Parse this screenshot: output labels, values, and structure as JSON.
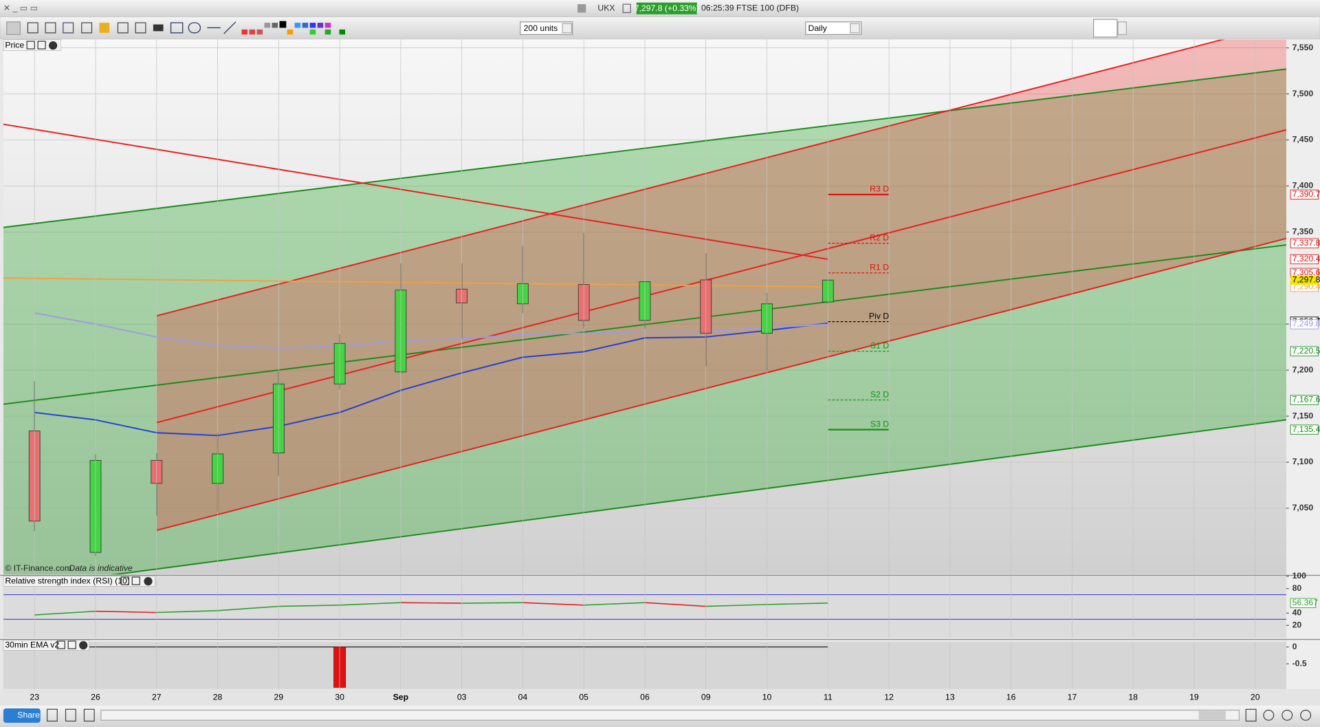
{
  "window": {
    "symbol": "UKX",
    "price": "7,297.8 (+0.33%)",
    "status": "06:25:39 FTSE 100 (DFB)"
  },
  "toolbar": {
    "units": "200 units",
    "interval": "Daily"
  },
  "footer": {
    "share": "Share"
  },
  "chart_data": [
    {
      "type": "candlestick",
      "title": "Price",
      "credit": "© IT-Finance.com",
      "note": "Data is indicative",
      "categories": [
        "23",
        "26",
        "27",
        "28",
        "29",
        "30",
        "Sep",
        "03",
        "04",
        "05",
        "06",
        "09",
        "10",
        "11",
        "12",
        "13",
        "16",
        "17",
        "18",
        "19",
        "20"
      ],
      "open": [
        7134,
        7002,
        7102,
        7077,
        7110,
        7185,
        7198,
        7288,
        7272,
        7293,
        7254,
        7298,
        7240,
        7274,
        null,
        null,
        null,
        null,
        null,
        null,
        null
      ],
      "high": [
        7188,
        7109,
        7110,
        7132,
        7199,
        7239,
        7316,
        7316,
        7335,
        7349,
        7296,
        7327,
        7284,
        7298,
        null,
        null,
        null,
        null,
        null,
        null,
        null
      ],
      "low": [
        7025,
        6998,
        7042,
        7046,
        7085,
        7179,
        7198,
        7234,
        7262,
        7245,
        7245,
        7204,
        7199,
        7272,
        null,
        null,
        null,
        null,
        null,
        null,
        null
      ],
      "close": [
        7036,
        7102,
        7077,
        7109,
        7185,
        7229,
        7287,
        7273,
        7294,
        7254,
        7296,
        7240,
        7272,
        7297.8,
        null,
        null,
        null,
        null,
        null,
        null,
        null
      ],
      "colors": {
        "up": "#44d444",
        "down": "#e87070"
      },
      "ylim": [
        6978,
        7559
      ],
      "yticks": [
        {
          "value": 7050,
          "label": "7,050"
        },
        {
          "value": 7100,
          "label": "7,100"
        },
        {
          "value": 7150,
          "label": "7,150"
        },
        {
          "value": 7200,
          "label": "7,200"
        },
        {
          "value": 7250,
          "label": "7,250"
        },
        {
          "value": 7350,
          "label": "7,350"
        },
        {
          "value": 7400,
          "label": "7,400"
        },
        {
          "value": 7450,
          "label": "7,450"
        },
        {
          "value": 7500,
          "label": "7,500"
        },
        {
          "value": 7550,
          "label": "7,550"
        }
      ],
      "moving_averages": [
        {
          "color": "#1f3fd8",
          "values": [
            7154,
            7146,
            7132,
            7129,
            7139,
            7154,
            7178,
            7197,
            7214,
            7220,
            7235,
            7236,
            7243,
            7251,
            null,
            null,
            null,
            null,
            null,
            null,
            null
          ]
        },
        {
          "color": "#9c9ce0",
          "values": [
            7262,
            7250,
            7236,
            7227,
            7224,
            7226,
            7232,
            7234,
            7239,
            7240,
            7242,
            7242,
            7246,
            7249.8,
            null,
            null,
            null,
            null,
            null,
            null,
            null
          ]
        }
      ],
      "channels": [
        {
          "color": "#1a8a1a",
          "fill": "rgba(40,170,40,0.33)",
          "upper": {
            "x": [
              -0.51,
              20.51
            ],
            "y": [
              7355,
              7527
            ]
          },
          "middle": {
            "x": [
              -0.51,
              20.51
            ],
            "y": [
              7163,
              7336
            ]
          },
          "lower": {
            "x": [
              -0.51,
              20.51
            ],
            "y": [
              6962,
              7146
            ]
          }
        },
        {
          "color": "#e81e1e",
          "fill": "rgba(235,60,60,0.33)",
          "upper": {
            "x": [
              2,
              20.51
            ],
            "y": [
              7259,
              7577
            ]
          },
          "middle": {
            "x": [
              2,
              20.51
            ],
            "y": [
              7143,
              7461
            ]
          },
          "lower": {
            "x": [
              2,
              20.51
            ],
            "y": [
              7026,
              7343
            ]
          }
        }
      ],
      "trendlines": [
        {
          "color": "#e81e1e",
          "x": [
            -0.51,
            13
          ],
          "y": [
            7467,
            7320.4
          ]
        },
        {
          "color": "#f0a040",
          "x": [
            -0.51,
            13
          ],
          "y": [
            7300,
            7290.4
          ]
        }
      ],
      "pivots": [
        {
          "label": "R3 D",
          "value": 7390.7,
          "value_label": "7,390.7",
          "color": "#e01010",
          "dashed": false
        },
        {
          "label": "R2 D",
          "value": 7337.8,
          "value_label": "7,337.8",
          "color": "#e01010",
          "dashed": true
        },
        {
          "label": "R1 D",
          "value": 7305.6,
          "value_label": "7,305.6",
          "color": "#e01010",
          "dashed": true
        },
        {
          "label": "Piv D",
          "value": 7252.7,
          "value_label": "7,252.7",
          "color": "#000000",
          "dashed": true
        },
        {
          "label": "S1 D",
          "value": 7220.5,
          "value_label": "7,220.5",
          "color": "#139013",
          "dashed": true
        },
        {
          "label": "S2 D",
          "value": 7167.6,
          "value_label": "7,167.6",
          "color": "#139013",
          "dashed": true
        },
        {
          "label": "S3 D",
          "value": 7135.4,
          "value_label": "7,135.4",
          "color": "#139013",
          "dashed": false
        }
      ],
      "last_price": {
        "value": 7297.8,
        "label": "7,297.8"
      },
      "end_labels": [
        {
          "value": 7320.4,
          "label": "7,320.4",
          "color": "#e01010"
        },
        {
          "value": 7290.4,
          "label": "7,290.4",
          "color": "#f0a040"
        },
        {
          "value": 7249.8,
          "label": "7,249.8",
          "color": "#9c9ce0"
        }
      ]
    },
    {
      "type": "line",
      "title": "Relative strength index (RSI) (10)",
      "ylim": [
        0,
        100
      ],
      "yticks": [
        20,
        40,
        80,
        100
      ],
      "levels": [
        30,
        70
      ],
      "colors": {
        "up": "#2ca02c",
        "down": "#e02020"
      },
      "values": [
        37,
        43,
        41,
        44,
        51,
        53,
        57,
        56,
        57,
        53,
        57,
        51,
        54,
        56.367,
        null,
        null,
        null,
        null,
        null,
        null,
        null
      ],
      "last_label": "56.367"
    },
    {
      "type": "bar",
      "title": "30min EMA v2",
      "ylim": [
        -1.25,
        0.15
      ],
      "yticks": [
        0,
        -0.5
      ],
      "color": "#dd1111",
      "values": [
        0,
        0,
        0,
        0,
        0,
        -1.2,
        0,
        0,
        0,
        0,
        0,
        0,
        0,
        0,
        null,
        null,
        null,
        null,
        null,
        null,
        null
      ]
    }
  ]
}
